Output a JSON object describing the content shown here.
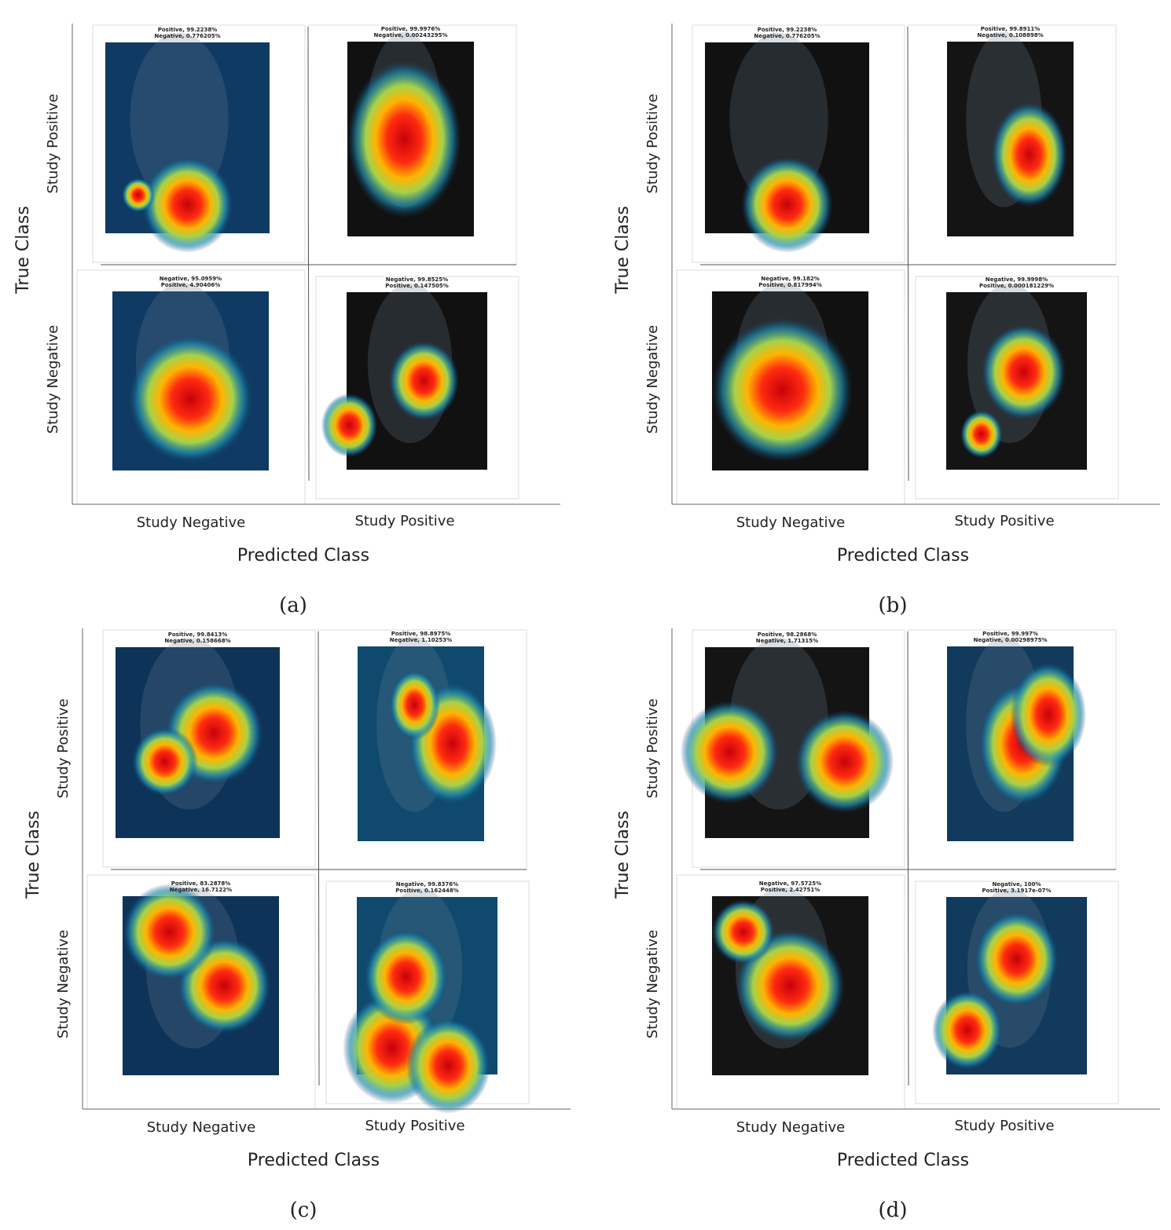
{
  "panels": [
    {
      "label": "(a)",
      "x_axis_title": "Predicted Class",
      "y_axis_title": "True Class",
      "x_labels": [
        "Study Negative",
        "Study Positive"
      ],
      "y_labels": [
        "Study Positive",
        "Study Negative"
      ],
      "cells": [
        [
          "Positive, 99.2238%",
          "Negative, 0.776205%"
        ],
        [
          "Positive, 99.9976%",
          "Negative, 0.00243295%"
        ],
        [
          "Negative, 95.0959%",
          "Positive, 4.90406%"
        ],
        [
          "Negative, 99.8525%",
          "Positive, 0.147505%"
        ]
      ]
    },
    {
      "label": "(b)",
      "x_axis_title": "Predicted Class",
      "y_axis_title": "True Class",
      "x_labels": [
        "Study Negative",
        "Study Positive"
      ],
      "y_labels": [
        "Study Positive",
        "Study Negative"
      ],
      "cells": [
        [
          "Positive, 99.2238%",
          "Negative, 0.776205%"
        ],
        [
          "Positive, 99.8911%",
          "Negative, 0.108898%"
        ],
        [
          "Negative, 99.182%",
          "Positive, 0.817994%"
        ],
        [
          "Negative, 99.9998%",
          "Positive, 0.000181229%"
        ]
      ]
    },
    {
      "label": "(c)",
      "x_axis_title": "Predicted Class",
      "y_axis_title": "True Class",
      "x_labels": [
        "Study Negative",
        "Study Positive"
      ],
      "y_labels": [
        "Study Positive",
        "Study Negative"
      ],
      "cells": [
        [
          "Positive, 99.8413%",
          "Negative, 0.158668%"
        ],
        [
          "Positive, 98.8975%",
          "Negative, 1.10253%"
        ],
        [
          "Positive, 83.2878%",
          "Negative, 16.7122%"
        ],
        [
          "Negative, 99.8376%",
          "Positive, 0.162448%"
        ]
      ]
    },
    {
      "label": "(d)",
      "x_axis_title": "Predicted Class",
      "y_axis_title": "True Class",
      "x_labels": [
        "Study Negative",
        "Study Positive"
      ],
      "y_labels": [
        "Study Positive",
        "Study Negative"
      ],
      "cells": [
        [
          "Positive, 98.2868%",
          "Negative, 1.71315%"
        ],
        [
          "Positive, 99.997%",
          "Negative, 0.00298975%"
        ],
        [
          "Negative, 97.5725%",
          "Positive, 2.42751%"
        ],
        [
          "Negative, 100%",
          "Positive, 3.1917e-07%"
        ]
      ]
    }
  ]
}
